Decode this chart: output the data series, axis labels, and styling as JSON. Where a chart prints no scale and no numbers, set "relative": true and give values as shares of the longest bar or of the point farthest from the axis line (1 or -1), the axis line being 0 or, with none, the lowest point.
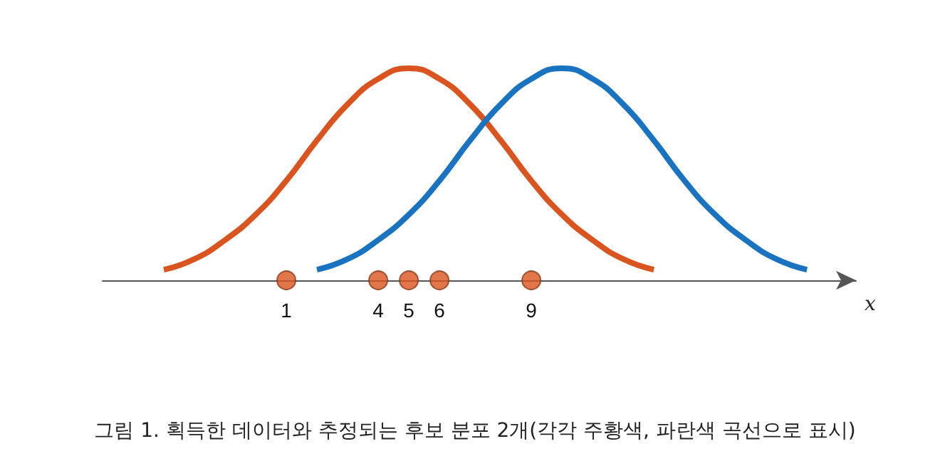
{
  "chart_data": {
    "type": "line",
    "relative": true,
    "xlabel": "x",
    "xlim": [
      -5,
      19.6
    ],
    "xticks": [
      1,
      4,
      5,
      6,
      9
    ],
    "annotations": [
      "그림 1. 획득한 데이터와 추정되는 후보 분포 2개(각각 주황색, 파란색 곡선으로 표시)"
    ],
    "series": [
      {
        "color": "#d9541e",
        "marker": "none",
        "x": [
          -3,
          -2,
          -1,
          0,
          1,
          2,
          3,
          4,
          5,
          6,
          7,
          8,
          9,
          10,
          11,
          12,
          13
        ],
        "values": [
          0.05,
          0.1,
          0.19,
          0.31,
          0.47,
          0.66,
          0.83,
          0.95,
          1,
          0.95,
          0.83,
          0.66,
          0.47,
          0.31,
          0.19,
          0.1,
          0.05
        ]
      },
      {
        "color": "#1a73c0",
        "marker": "none",
        "x": [
          2,
          3,
          4,
          5,
          6,
          7,
          8,
          9,
          10,
          11,
          12,
          13,
          14,
          15,
          16,
          17,
          18
        ],
        "values": [
          0.05,
          0.1,
          0.19,
          0.31,
          0.47,
          0.66,
          0.83,
          0.95,
          1,
          0.95,
          0.83,
          0.66,
          0.47,
          0.31,
          0.19,
          0.1,
          0.05
        ]
      },
      {
        "type": "scatter",
        "color": "#d9541e",
        "marker": "circle",
        "x": [
          1,
          4,
          5,
          6,
          9
        ],
        "values": [
          0,
          0,
          0,
          0,
          0
        ]
      }
    ]
  }
}
